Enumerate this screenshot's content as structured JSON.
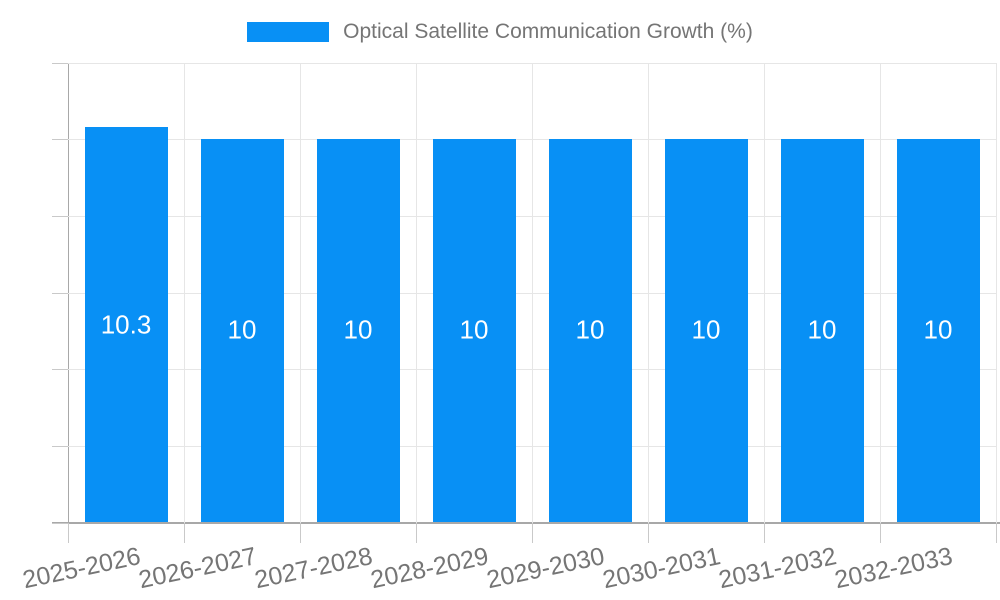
{
  "chart_data": {
    "type": "bar",
    "title": "Optical Satellite Communication Growth (%)",
    "legend_label": "Optical Satellite Communication Growth (%)",
    "legend_position": "top",
    "categories": [
      "2025-2026",
      "2026-2027",
      "2027-2028",
      "2028-2029",
      "2029-2030",
      "2030-2031",
      "2031-2032",
      "2032-2033"
    ],
    "values": [
      10.3,
      10,
      10,
      10,
      10,
      10,
      10,
      10
    ],
    "bar_labels": [
      "10.3",
      "10",
      "10",
      "10",
      "10",
      "10",
      "10",
      "10"
    ],
    "xlabel": "",
    "ylabel": "",
    "ylim": [
      0,
      12
    ],
    "yticks": [
      0,
      2,
      4,
      6,
      8,
      10,
      12
    ],
    "grid": true,
    "colors": {
      "bar": "#0890f5",
      "axis_text": "#757575",
      "bar_label_text": "#ffffff",
      "grid_line": "#e6e6e6",
      "axis_line": "#a8a8a8",
      "tick_line": "#c9c9c9",
      "background": "#ffffff"
    }
  }
}
